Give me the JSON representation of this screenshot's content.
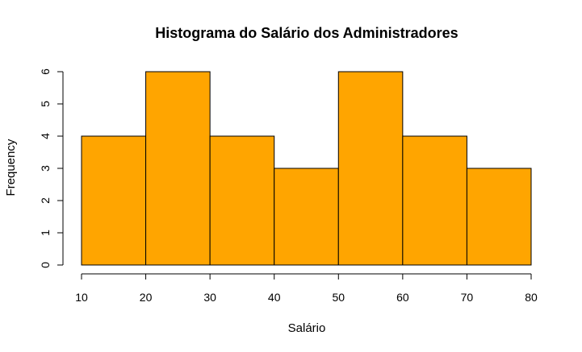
{
  "chart_data": {
    "type": "bar",
    "title": "Histograma do Salário dos Administradores",
    "xlabel": "Salário",
    "ylabel": "Frequency",
    "bins": [
      [
        10,
        20
      ],
      [
        20,
        30
      ],
      [
        30,
        40
      ],
      [
        40,
        50
      ],
      [
        50,
        60
      ],
      [
        60,
        70
      ],
      [
        70,
        80
      ]
    ],
    "values": [
      4,
      6,
      4,
      3,
      6,
      4,
      3
    ],
    "xlim": [
      10,
      80
    ],
    "ylim": [
      0,
      6
    ],
    "xticks": [
      "10",
      "20",
      "30",
      "40",
      "50",
      "60",
      "70",
      "80"
    ],
    "yticks": [
      "0",
      "1",
      "2",
      "3",
      "4",
      "5",
      "6"
    ],
    "bar_color": "#FFA500",
    "bar_border": "#000000",
    "grid": false
  }
}
